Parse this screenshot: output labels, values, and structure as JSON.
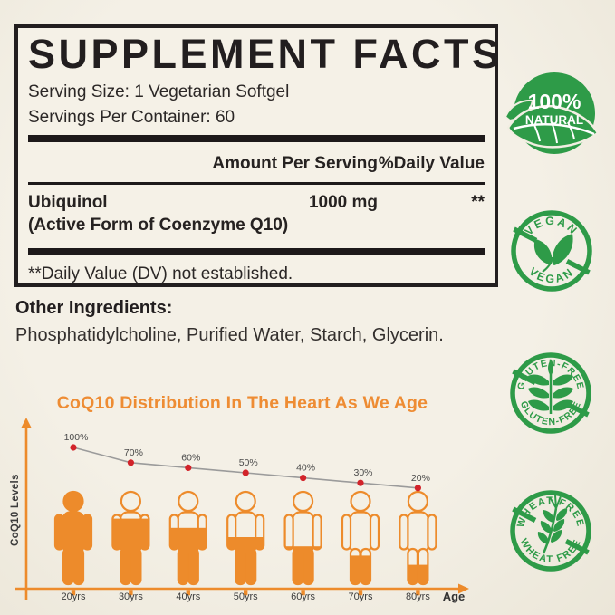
{
  "colors": {
    "orange": "#ED8B2B",
    "title_orange": "#EE8C33",
    "green": "#2E9B48",
    "red": "#D2232A",
    "line_gray": "#9B9B9B",
    "ink": "#221E1F",
    "paper": "#F2EEE2"
  },
  "supplement_facts": {
    "title": "SUPPLEMENT FACTS",
    "serving_size": "Serving Size: 1 Vegetarian Softgel",
    "servings_per_container": "Servings Per Container: 60",
    "column_headers": {
      "amount": "Amount Per Serving",
      "daily_value": "%Daily Value"
    },
    "rows": [
      {
        "name": "Ubiquinol",
        "detail": "(Active Form of Coenzyme Q10)",
        "amount": "1000 mg",
        "daily_value": "**"
      }
    ],
    "footnote": "**Daily Value (DV) not established."
  },
  "other_ingredients": {
    "label": "Other Ingredients:",
    "value": "Phosphatidylcholine, Purified Water, Starch, Glycerin."
  },
  "chart_data": {
    "type": "line",
    "title": "CoQ10 Distribution In The Heart As We Age",
    "categories": [
      "20yrs",
      "30yrs",
      "40yrs",
      "50yrs",
      "60yrs",
      "70yrs",
      "80yrs"
    ],
    "values": [
      100,
      70,
      60,
      50,
      40,
      30,
      20
    ],
    "value_labels": [
      "100%",
      "70%",
      "60%",
      "50%",
      "40%",
      "30%",
      "20%"
    ],
    "xlabel": "Age",
    "ylabel": "CoQ10 Levels",
    "ylim": [
      0,
      100
    ],
    "grid": false,
    "legend": false
  },
  "badges": [
    {
      "name": "100-percent-natural",
      "line1": "100%",
      "line2": "NATURAL"
    },
    {
      "name": "vegan",
      "top": "VEGAN",
      "bottom": "VEGAN"
    },
    {
      "name": "gluten-free",
      "top": "GLUTEN-FREE",
      "bottom": "GLUTEN-FREE"
    },
    {
      "name": "wheat-free",
      "top": "WHEAT FREE",
      "bottom": "WHEAT FREE"
    }
  ]
}
